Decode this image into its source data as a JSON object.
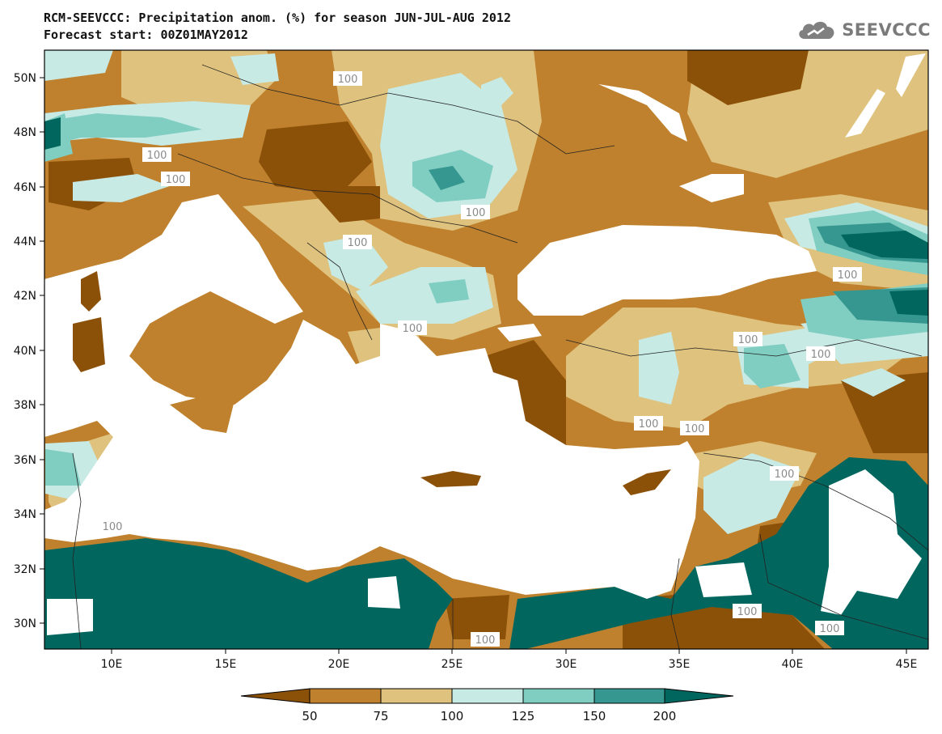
{
  "header": {
    "title": "RCM-SEEVCCC: Precipitation anom. (%) for season JUN-JUL-AUG 2012",
    "subtitle": "Forecast start: 00Z01MAY2012"
  },
  "logo": {
    "text": "SEEVCCC",
    "icon": "cloud-icon",
    "color": "#808080"
  },
  "map": {
    "lon_range": [
      7,
      46
    ],
    "lat_range": [
      29,
      51
    ],
    "lat_ticks": [
      "50N",
      "48N",
      "46N",
      "44N",
      "42N",
      "40N",
      "38N",
      "36N",
      "34N",
      "32N",
      "30N"
    ],
    "lon_ticks": [
      "10E",
      "15E",
      "20E",
      "25E",
      "30E",
      "35E",
      "40E",
      "45E"
    ],
    "contour_label": "100",
    "colors": {
      "lt50": "#8c5109",
      "50to75": "#bf812d",
      "75to100": "#dfc27d",
      "100to125": "#c7eae5",
      "125to150": "#80cdc1",
      "150to200": "#35978f",
      "gt200": "#01665e",
      "sea": "#ffffff"
    }
  },
  "colorbar": {
    "labels": [
      "50",
      "75",
      "100",
      "125",
      "150",
      "200"
    ],
    "colors": [
      "#8c5109",
      "#bf812d",
      "#dfc27d",
      "#c7eae5",
      "#80cdc1",
      "#35978f",
      "#01665e"
    ]
  }
}
